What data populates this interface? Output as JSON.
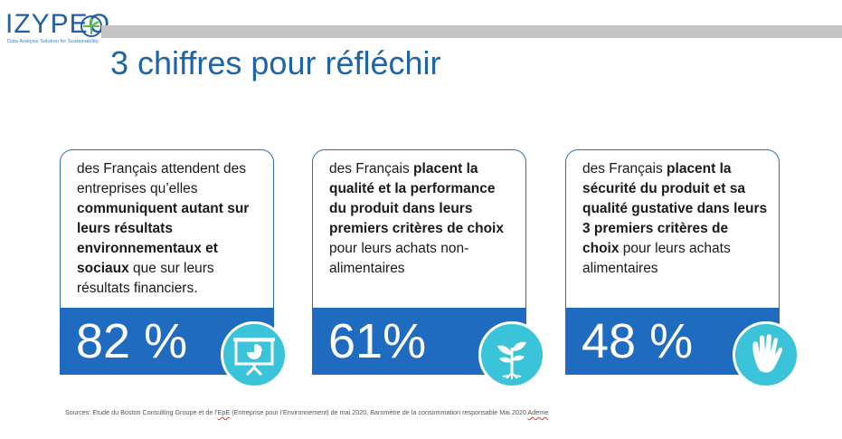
{
  "logo": {
    "word": "IZYPEO",
    "tagline": "Data Analysis Solution for Sustainability",
    "icon": "leaf-cross-logo-icon"
  },
  "title": "3 chiffres pour réfléchir",
  "cards": [
    {
      "parts": [
        {
          "text": "des Français attendent des entreprises qu’elles ",
          "bold": false
        },
        {
          "text": "communiquent autant sur leurs résultats environnementaux et sociaux",
          "bold": true
        },
        {
          "text": " que sur leurs résultats financiers.",
          "bold": false
        }
      ],
      "stat": "82 %",
      "icon": "presentation-chart-icon"
    },
    {
      "parts": [
        {
          "text": "des Français ",
          "bold": false
        },
        {
          "text": "placent la qualité et la performance du produit dans leurs premiers critères de choix",
          "bold": true
        },
        {
          "text": " pour leurs achats non-alimentaires",
          "bold": false
        }
      ],
      "stat": "61%",
      "icon": "sprout-plant-icon"
    },
    {
      "parts": [
        {
          "text": "des Français ",
          "bold": false
        },
        {
          "text": "placent la sécurité du produit et sa qualité gustative dans leurs 3 premiers critères de choix",
          "bold": true
        },
        {
          "text": " pour leurs achats alimentaires",
          "bold": false
        }
      ],
      "stat": "48 %",
      "icon": "hand-print-icon"
    }
  ],
  "sources": {
    "before": "Sources: Etude du Boston Consulting Groupe et de l’",
    "epe": "EpE",
    "middle": " (Entreprise pour l’Environnement) de mai 2020, Baromètre de la consommation responsable Mai 2020 ",
    "ademe": "Ademe"
  },
  "colors": {
    "accent": "#1f6bc0",
    "title": "#1e64a6",
    "badge": "#3bc3d9",
    "bar": "#c5c5c5"
  }
}
